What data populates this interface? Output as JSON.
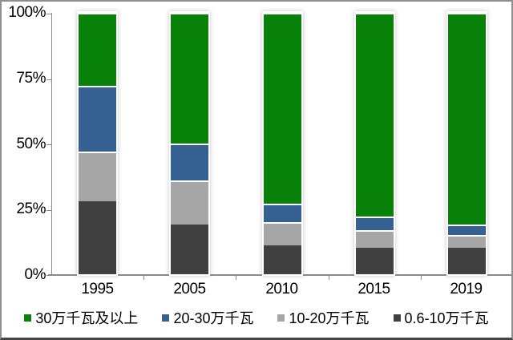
{
  "chart_data": {
    "type": "bar",
    "stacked": true,
    "percent_stacked": true,
    "title": "",
    "xlabel": "",
    "ylabel": "",
    "categories": [
      "1995",
      "2005",
      "2010",
      "2015",
      "2019"
    ],
    "series": [
      {
        "name": "0.6-10万千瓦",
        "color": "#404040",
        "values": [
          28,
          19,
          11,
          10,
          10
        ]
      },
      {
        "name": "10-20万千瓦",
        "color": "#A6A6A6",
        "values": [
          19,
          17,
          9,
          7,
          5
        ]
      },
      {
        "name": "20-30万千瓦",
        "color": "#356192",
        "values": [
          25,
          14,
          7,
          5,
          4
        ]
      },
      {
        "name": "30万千瓦及以上",
        "color": "#088208",
        "values": [
          28,
          50,
          73,
          78,
          81
        ]
      }
    ],
    "ylim": [
      0,
      100
    ],
    "ytick_labels": [
      "0%",
      "25%",
      "50%",
      "75%",
      "100%"
    ],
    "grid": false,
    "legend_position": "bottom"
  },
  "axes": {
    "y": {
      "labels": [
        "100%",
        "75%",
        "50%",
        "25%",
        "0%"
      ]
    },
    "x": {
      "labels": [
        "1995",
        "2005",
        "2010",
        "2015",
        "2019"
      ]
    }
  },
  "legend": {
    "items": [
      {
        "label": "30万千瓦及以上",
        "color": "#088208"
      },
      {
        "label": "20-30万千瓦",
        "color": "#356192"
      },
      {
        "label": "10-20万千瓦",
        "color": "#A6A6A6"
      },
      {
        "label": "0.6-10万千瓦",
        "color": "#404040"
      }
    ]
  },
  "colors": {
    "frame_border": "#8F8F8F",
    "axis": "#8A8A8A",
    "background": "#FFFFFF",
    "bar_edge": "#FFFFFF",
    "text": "#000000"
  }
}
